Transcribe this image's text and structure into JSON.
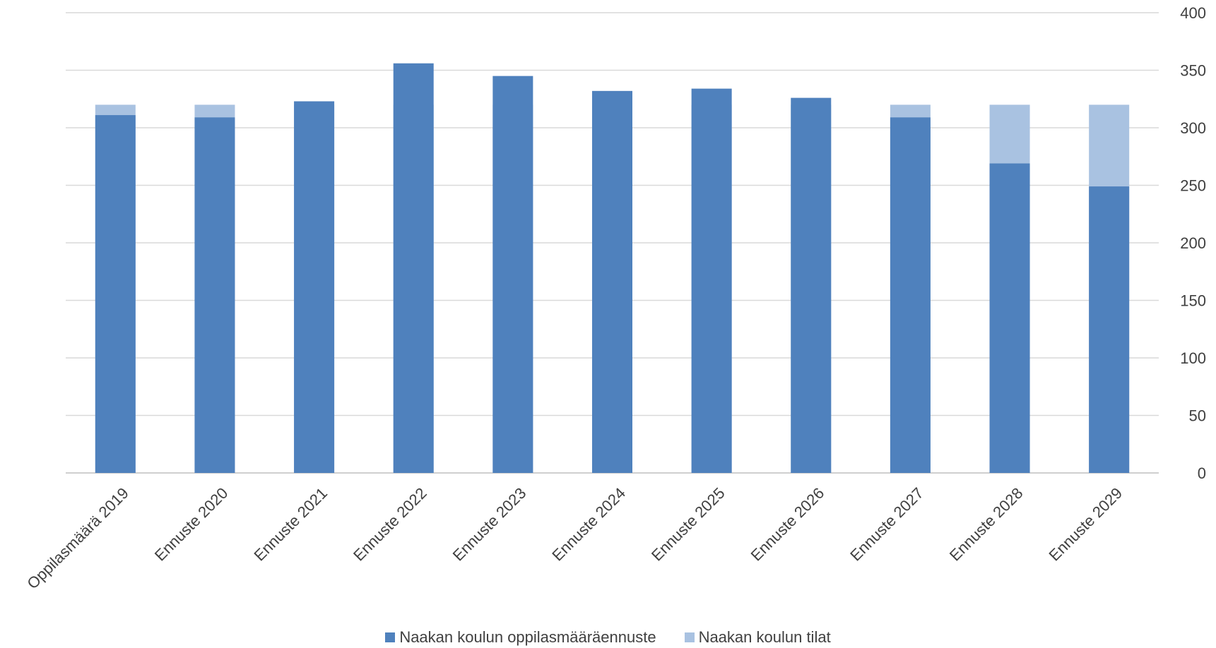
{
  "chart_data": {
    "type": "bar",
    "categories": [
      "Oppilasmäärä 2019",
      "Ennuste 2020",
      "Ennuste 2021",
      "Ennuste 2022",
      "Ennuste 2023",
      "Ennuste 2024",
      "Ennuste 2025",
      "Ennuste 2026",
      "Ennuste 2027",
      "Ennuste 2028",
      "Ennuste 2029"
    ],
    "series": [
      {
        "name": "Naakan koulun oppilasmääräennuste",
        "color": "#4f81bd",
        "values": [
          311,
          309,
          323,
          356,
          345,
          332,
          334,
          326,
          309,
          269,
          249
        ]
      },
      {
        "name": "Naakan koulun tilat",
        "color": "#a9c2e1",
        "values": [
          320,
          320,
          320,
          320,
          320,
          320,
          320,
          320,
          320,
          320,
          320
        ]
      }
    ],
    "overlap": "tilat drawn behind oppilasmääräennuste",
    "ylim": [
      0,
      400
    ],
    "yticks": [
      "0",
      "50",
      "100",
      "150",
      "200",
      "250",
      "300",
      "350",
      "400"
    ],
    "y_axis_side": "right",
    "grid": true,
    "legend_position": "bottom",
    "title": "",
    "xlabel": "",
    "ylabel": ""
  }
}
